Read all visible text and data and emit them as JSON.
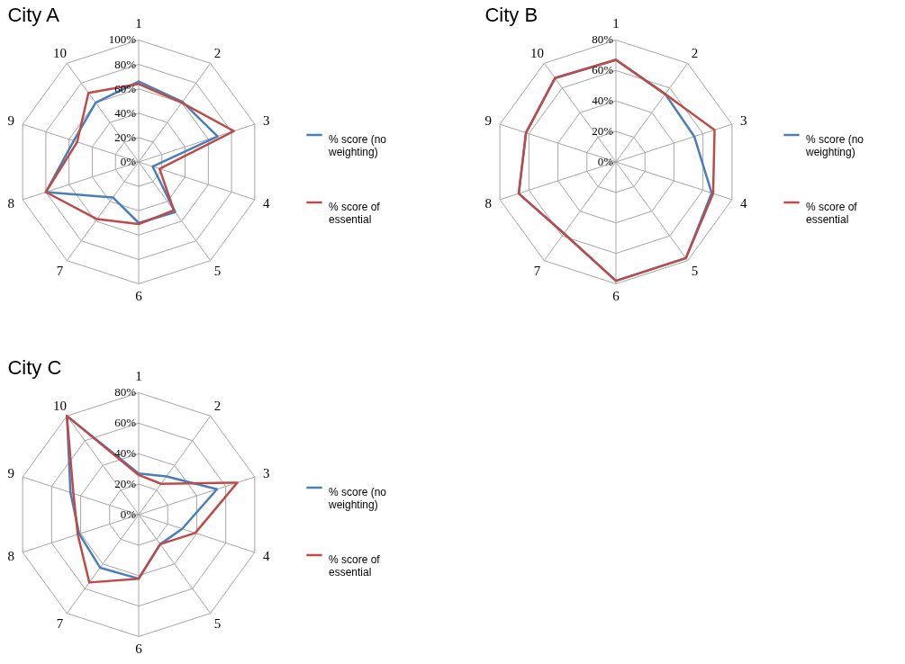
{
  "chart_data": [
    {
      "type": "radar",
      "title": "City A",
      "categories": [
        "1",
        "2",
        "3",
        "4",
        "5",
        "6",
        "7",
        "8",
        "9",
        "10"
      ],
      "ylim": [
        0,
        100
      ],
      "yticks": [
        {
          "value": 0,
          "label": "0%"
        },
        {
          "value": 20,
          "label": "20%"
        },
        {
          "value": 40,
          "label": "40%"
        },
        {
          "value": 60,
          "label": "60%"
        },
        {
          "value": 80,
          "label": "80%"
        },
        {
          "value": 100,
          "label": "100%"
        }
      ],
      "grid": true,
      "legend": "right",
      "series": [
        {
          "name": "% score (no weighting)",
          "color": "#4a7ebb",
          "values": [
            66,
            61,
            68,
            12,
            51,
            50,
            36,
            80,
            56,
            60
          ]
        },
        {
          "name": "% score of essential",
          "color": "#be4b48",
          "values": [
            64,
            60,
            82,
            18,
            49,
            51,
            58,
            80,
            53,
            70
          ]
        }
      ]
    },
    {
      "type": "radar",
      "title": "City B",
      "categories": [
        "1",
        "2",
        "3",
        "4",
        "5",
        "6",
        "7",
        "8",
        "9",
        "10"
      ],
      "ylim": [
        0,
        80
      ],
      "yticks": [
        {
          "value": 0,
          "label": "0%"
        },
        {
          "value": 20,
          "label": "20%"
        },
        {
          "value": 40,
          "label": "40%"
        },
        {
          "value": 60,
          "label": "60%"
        },
        {
          "value": 80,
          "label": "80%"
        }
      ],
      "grid": true,
      "legend": "right",
      "series": [
        {
          "name": "% score (no weighting)",
          "color": "#4a7ebb",
          "values": [
            67,
            55,
            54,
            66,
            78,
            78,
            58,
            67,
            62,
            68
          ]
        },
        {
          "name": "% score of essential",
          "color": "#be4b48",
          "values": [
            67,
            55,
            68,
            67,
            78,
            78,
            58,
            67,
            62,
            68
          ]
        }
      ]
    },
    {
      "type": "radar",
      "title": "City C",
      "categories": [
        "1",
        "2",
        "3",
        "4",
        "5",
        "6",
        "7",
        "8",
        "9",
        "10"
      ],
      "ylim": [
        0,
        80
      ],
      "yticks": [
        {
          "value": 0,
          "label": "0%"
        },
        {
          "value": 20,
          "label": "20%"
        },
        {
          "value": 40,
          "label": "40%"
        },
        {
          "value": 60,
          "label": "60%"
        },
        {
          "value": 80,
          "label": "80%"
        }
      ],
      "grid": true,
      "legend": "right",
      "series": [
        {
          "name": "% score (no weighting)",
          "color": "#4a7ebb",
          "values": [
            27,
            31,
            54,
            30,
            24,
            42,
            43,
            41,
            47,
            80
          ]
        },
        {
          "name": "% score of essential",
          "color": "#be4b48",
          "values": [
            26,
            25,
            68,
            39,
            24,
            42,
            55,
            42,
            45,
            80
          ]
        }
      ]
    }
  ]
}
